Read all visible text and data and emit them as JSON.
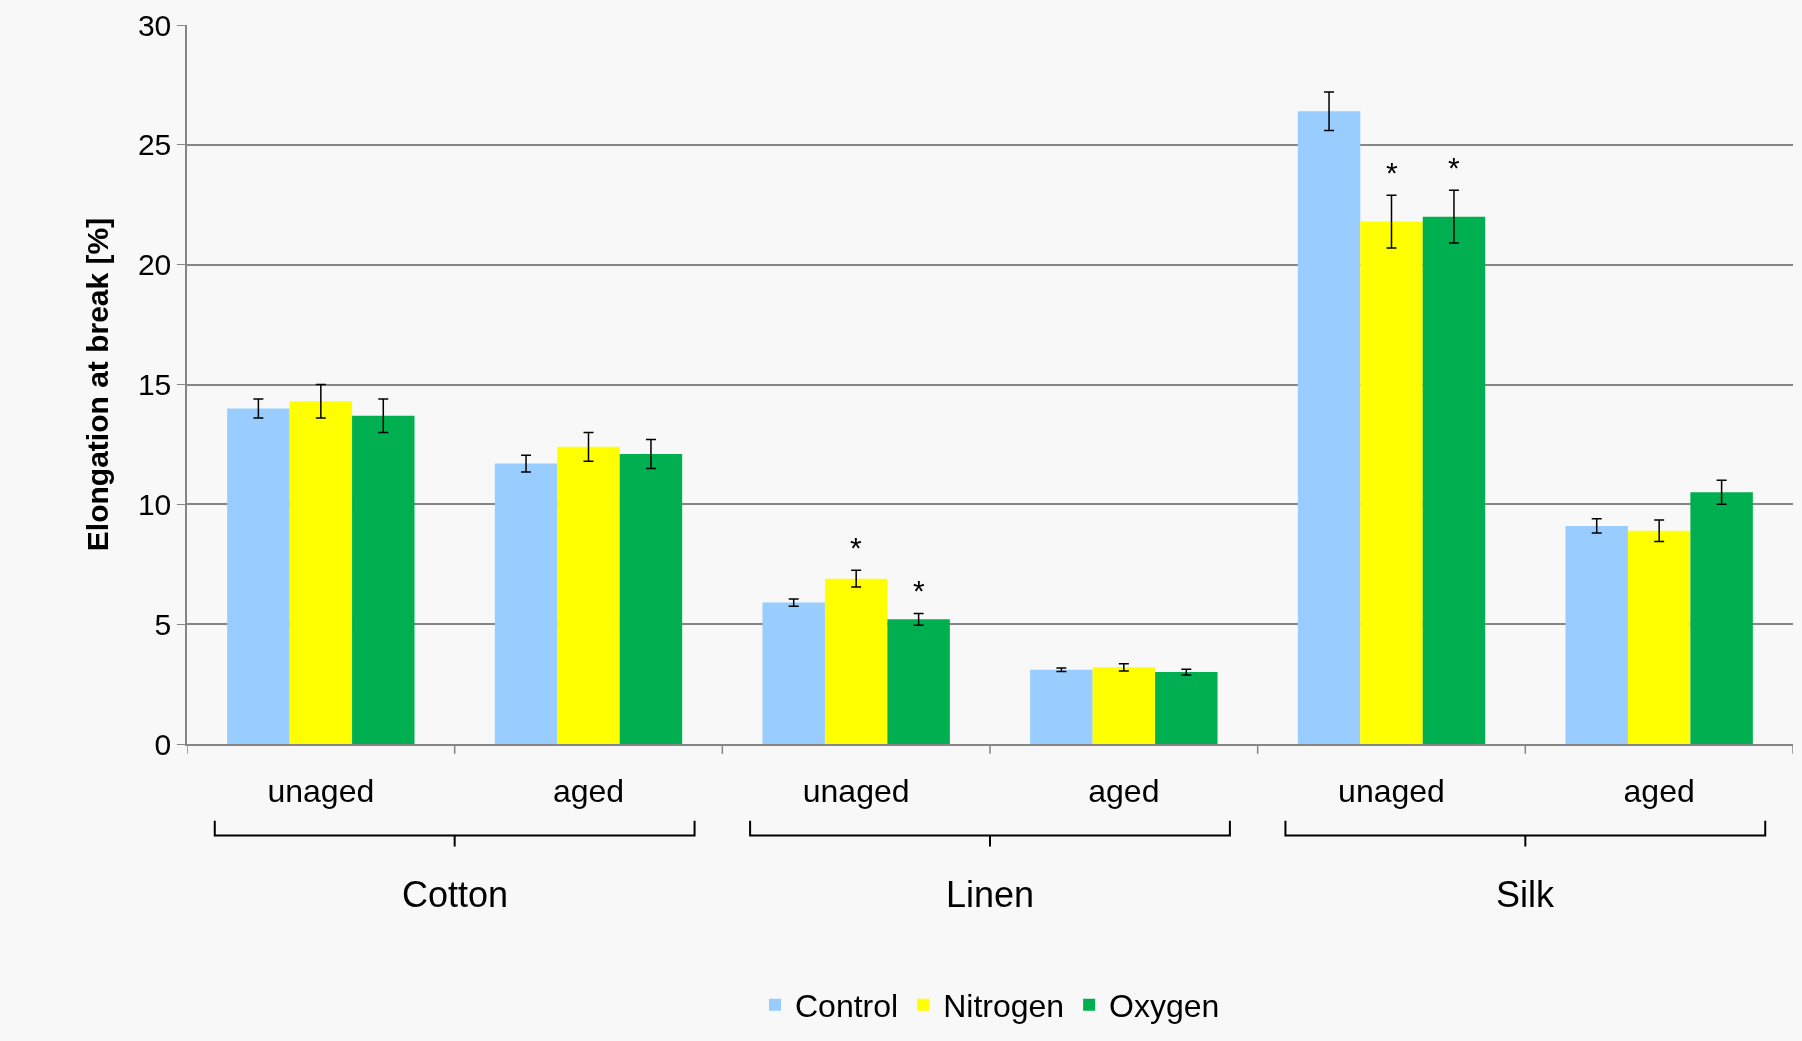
{
  "chart_data": {
    "type": "bar",
    "ylabel": "Elongation at break [%]",
    "categories": [
      "unaged",
      "aged",
      "unaged",
      "aged",
      "unaged",
      "aged"
    ],
    "series": [
      {
        "name": "Control",
        "color": "#99ccff",
        "values": [
          14.0,
          11.7,
          5.9,
          3.1,
          26.4,
          9.1
        ],
        "errors": [
          0.4,
          0.35,
          0.15,
          0.07,
          0.8,
          0.3
        ]
      },
      {
        "name": "Nitrogen",
        "color": "#ffff00",
        "values": [
          14.3,
          12.4,
          6.9,
          3.2,
          21.8,
          8.9
        ],
        "errors": [
          0.7,
          0.6,
          0.35,
          0.15,
          1.1,
          0.45
        ],
        "value_labels": [
          null,
          null,
          "*",
          null,
          "*",
          null
        ]
      },
      {
        "name": "Oxygen",
        "color": "#00b050",
        "values": [
          13.7,
          12.1,
          5.2,
          3.0,
          22.0,
          10.5
        ],
        "errors": [
          0.7,
          0.6,
          0.25,
          0.12,
          1.1,
          0.5
        ],
        "value_labels": [
          null,
          null,
          "*",
          null,
          "*",
          null
        ]
      }
    ],
    "annotations": [
      "Cotton",
      "Linen",
      "Silk"
    ],
    "ylim": [
      0,
      30
    ],
    "yticks": [
      0,
      5,
      10,
      15,
      20,
      25,
      30
    ],
    "grid": "y",
    "legend": "bottom"
  }
}
